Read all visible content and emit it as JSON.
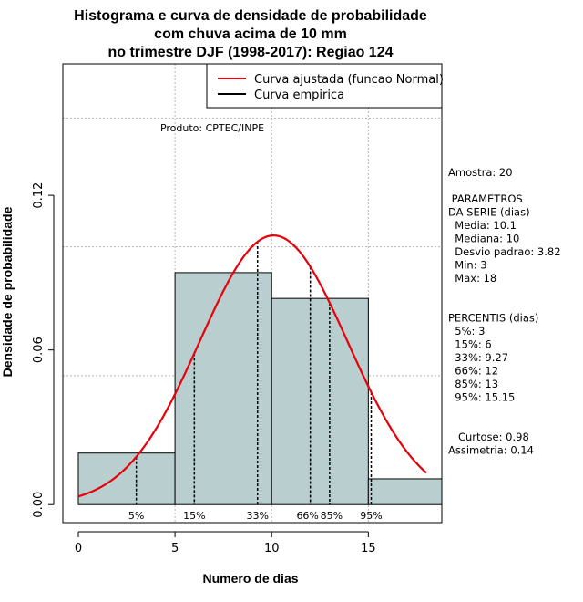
{
  "chart_data": {
    "type": "histogram",
    "title_lines": [
      "Histograma e curva de densidade de probabilidade",
      "com chuva acima de 10 mm",
      "no trimestre DJF (1998-2017): Regiao 124"
    ],
    "xlabel": "Numero de dias",
    "ylabel": "Densidade de probabilidade",
    "xlim": [
      -0.8,
      18.8
    ],
    "ylim": [
      -0.007,
      0.171
    ],
    "x_ticks": [
      0,
      5,
      10,
      15
    ],
    "y_ticks": [
      0.0,
      0.06,
      0.12
    ],
    "y_tick_labels": [
      "0.00",
      "0.06",
      "0.12"
    ],
    "grid": [
      {
        "axis": "y",
        "value": 0.05
      },
      {
        "axis": "y",
        "value": 0.1
      },
      {
        "axis": "y",
        "value": 0.15
      },
      {
        "axis": "x",
        "value": 5
      },
      {
        "axis": "x",
        "value": 10
      },
      {
        "axis": "x",
        "value": 15
      }
    ],
    "bins": [
      {
        "x0": 0,
        "x1": 5,
        "density": 0.02
      },
      {
        "x0": 5,
        "x1": 10,
        "density": 0.09
      },
      {
        "x0": 10,
        "x1": 15,
        "density": 0.08
      },
      {
        "x0": 15,
        "x1": 18.8,
        "density": 0.01
      }
    ],
    "normal_curve": {
      "mean": 10.1,
      "sd": 3.82,
      "x_start": 0,
      "x_end": 18
    },
    "percentiles": [
      {
        "label": "5%",
        "x": 3
      },
      {
        "label": "15%",
        "x": 6
      },
      {
        "label": "33%",
        "x": 9.27
      },
      {
        "label": "66%",
        "x": 12
      },
      {
        "label": "85%",
        "x": 13
      },
      {
        "label": "95%",
        "x": 15.15
      }
    ],
    "legend": [
      {
        "label": "Curva ajustada (funcao Normal)",
        "color": "#e8000b"
      },
      {
        "label": "Curva empirica",
        "color": "#000000"
      }
    ],
    "producer": "Produto: CPTEC/INPE",
    "stats_lines": [
      "Amostra: 20",
      "",
      " PARAMETROS",
      "DA SERIE (dias)",
      "  Media: 10.1",
      "  Mediana: 10",
      "  Desvio padrao: 3.82",
      "  Min: 3",
      "  Max: 18",
      "",
      "",
      "PERCENTIS (dias)",
      "  5%: 3",
      "  15%: 6",
      "  33%: 9.27",
      "  66%: 12",
      "  85%: 13",
      "  95%: 15.15",
      "",
      "",
      "   Curtose: 0.98",
      "Assimetria: 0.14"
    ],
    "colors": {
      "bar_fill": "#b9cfcf",
      "curve": "#e8000b",
      "grid": "#b4b4b4"
    }
  }
}
